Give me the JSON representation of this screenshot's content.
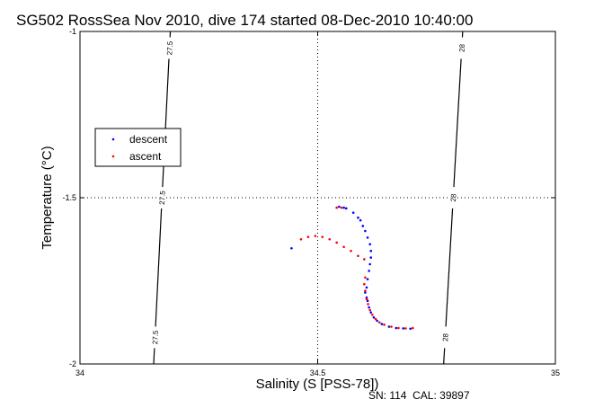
{
  "chart_data": {
    "type": "scatter",
    "title": "SG502 RossSea Nov 2010, dive 174 started 08-Dec-2010 10:40:00",
    "xlabel": "Salinity (S [PSS-78])",
    "ylabel": "Temperature (°C)",
    "xlim": [
      34,
      35
    ],
    "ylim": [
      -2,
      -1
    ],
    "xticks": [
      "34",
      "34.5",
      "35"
    ],
    "yticks": [
      "-1",
      "-1.5",
      "-2"
    ],
    "grid": true,
    "legend_position": "left",
    "footer": "SN: 114  CAL: 39897",
    "contours": [
      {
        "label": "27.5",
        "x_at_ymin": 34.155,
        "x_at_ymax": 34.19
      },
      {
        "label": "28",
        "x_at_ymin": 34.765,
        "x_at_ymax": 34.805
      }
    ],
    "series": [
      {
        "name": "descent",
        "color": "#0000ff",
        "points": [
          [
            34.545,
            -1.527
          ],
          [
            34.555,
            -1.53
          ],
          [
            34.56,
            -1.532
          ],
          [
            34.575,
            -1.545
          ],
          [
            34.585,
            -1.56
          ],
          [
            34.59,
            -1.568
          ],
          [
            34.595,
            -1.585
          ],
          [
            34.6,
            -1.6
          ],
          [
            34.605,
            -1.62
          ],
          [
            34.61,
            -1.64
          ],
          [
            34.612,
            -1.66
          ],
          [
            34.612,
            -1.68
          ],
          [
            34.61,
            -1.7
          ],
          [
            34.608,
            -1.72
          ],
          [
            34.605,
            -1.745
          ],
          [
            34.603,
            -1.77
          ],
          [
            34.6,
            -1.785
          ],
          [
            34.603,
            -1.8
          ],
          [
            34.605,
            -1.81
          ],
          [
            34.608,
            -1.83
          ],
          [
            34.612,
            -1.845
          ],
          [
            34.618,
            -1.86
          ],
          [
            34.625,
            -1.87
          ],
          [
            34.635,
            -1.88
          ],
          [
            34.65,
            -1.888
          ],
          [
            34.665,
            -1.892
          ],
          [
            34.68,
            -1.893
          ],
          [
            34.695,
            -1.894
          ],
          [
            34.445,
            -1.652
          ]
        ]
      },
      {
        "name": "ascent",
        "color": "#ff0000",
        "points": [
          [
            34.54,
            -1.53
          ],
          [
            34.55,
            -1.53
          ],
          [
            34.465,
            -1.625
          ],
          [
            34.48,
            -1.618
          ],
          [
            34.495,
            -1.615
          ],
          [
            34.51,
            -1.618
          ],
          [
            34.525,
            -1.625
          ],
          [
            34.54,
            -1.635
          ],
          [
            34.555,
            -1.648
          ],
          [
            34.57,
            -1.66
          ],
          [
            34.585,
            -1.675
          ],
          [
            34.598,
            -1.685
          ],
          [
            34.6,
            -1.74
          ],
          [
            34.598,
            -1.76
          ],
          [
            34.6,
            -1.78
          ],
          [
            34.603,
            -1.805
          ],
          [
            34.606,
            -1.82
          ],
          [
            34.61,
            -1.838
          ],
          [
            34.615,
            -1.852
          ],
          [
            34.622,
            -1.865
          ],
          [
            34.63,
            -1.875
          ],
          [
            34.64,
            -1.882
          ],
          [
            34.655,
            -1.888
          ],
          [
            34.67,
            -1.892
          ],
          [
            34.685,
            -1.893
          ],
          [
            34.7,
            -1.892
          ]
        ]
      }
    ]
  }
}
